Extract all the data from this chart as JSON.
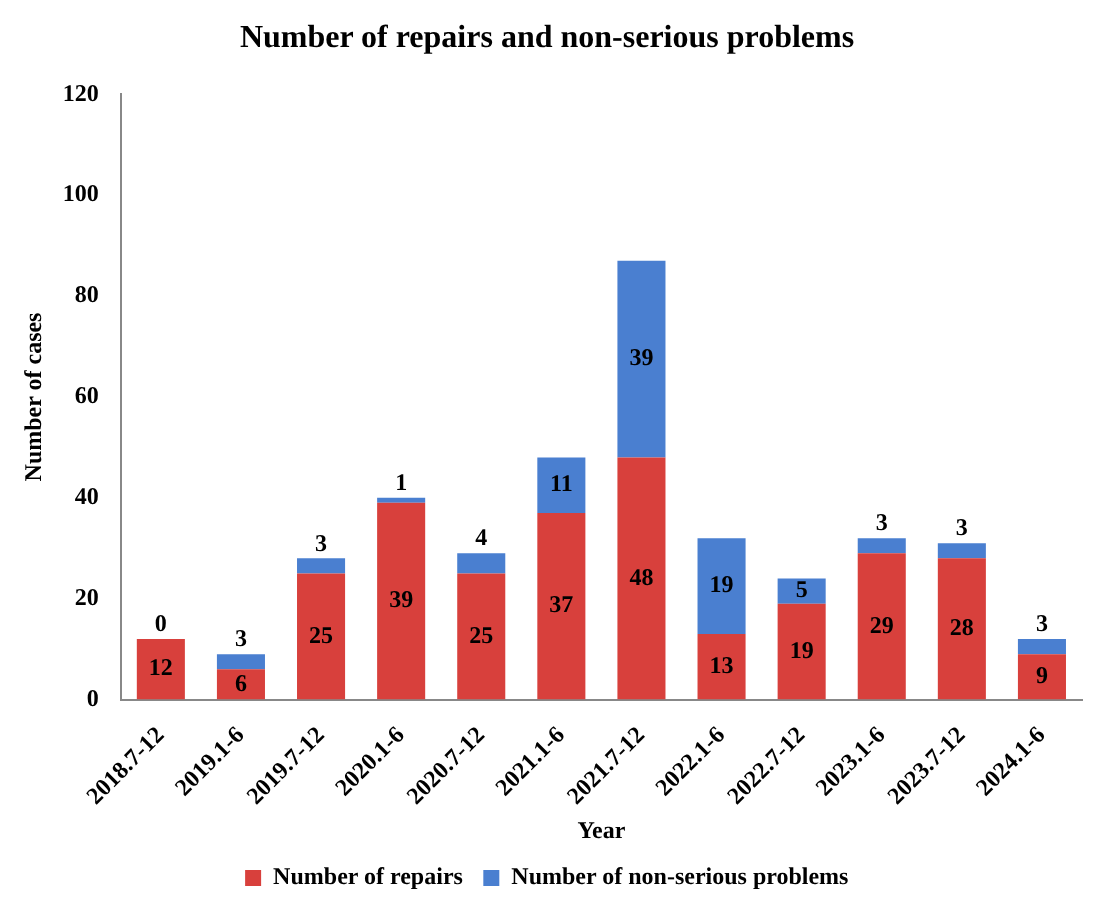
{
  "chart_data": {
    "type": "bar",
    "title": "Number of repairs and non-serious problems",
    "xlabel": "Year",
    "ylabel": "Number of cases",
    "categories": [
      "2018.7-12",
      "2019.1-6",
      "2019.7-12",
      "2020.1-6",
      "2020.7-12",
      "2021.1-6",
      "2021.7-12",
      "2022.1-6",
      "2022.7-12",
      "2023.1-6",
      "2023.7-12",
      "2024.1-6"
    ],
    "series": [
      {
        "name": "Number of repairs",
        "color": "#d8403c",
        "values": [
          12,
          6,
          25,
          39,
          25,
          37,
          48,
          13,
          19,
          29,
          28,
          9
        ]
      },
      {
        "name": "Number of non-serious problems",
        "color": "#4a7fd0",
        "values": [
          0,
          3,
          3,
          1,
          4,
          11,
          39,
          19,
          5,
          3,
          3,
          3
        ]
      }
    ],
    "stacked": true,
    "ylim": [
      0,
      120
    ],
    "yticks": [
      0,
      20,
      40,
      60,
      80,
      100,
      120
    ],
    "grid": false,
    "legend": "bottom",
    "data_labels": true
  }
}
